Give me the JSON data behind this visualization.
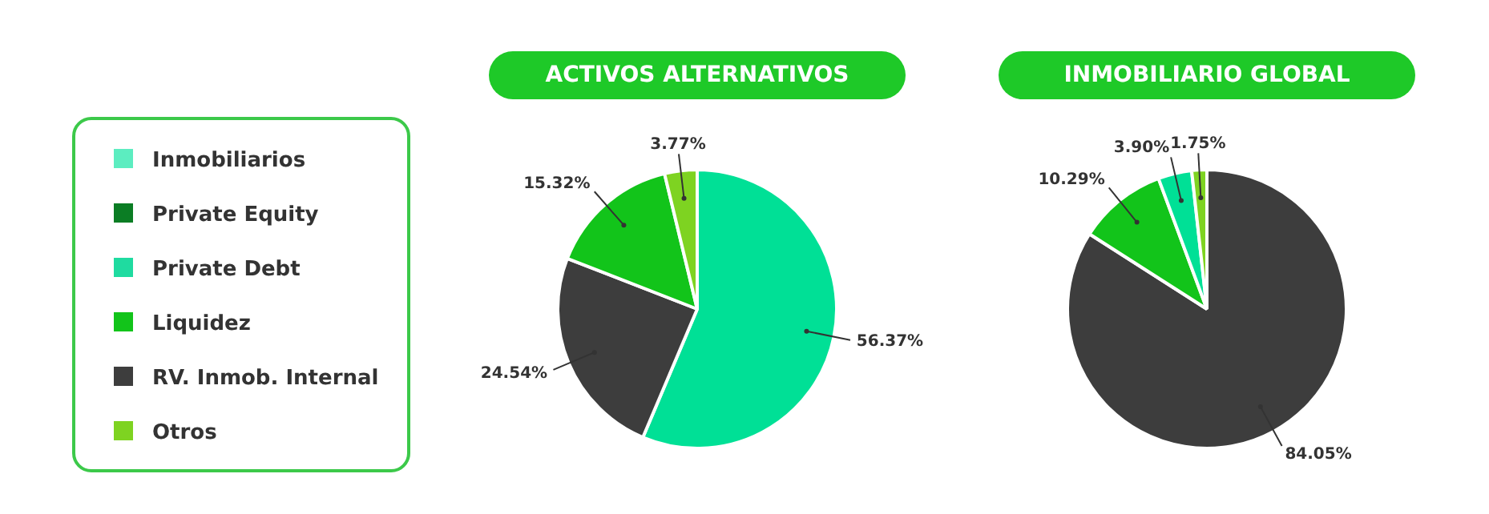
{
  "chart_data": [
    {
      "type": "other",
      "categories": [
        "Inmobiliarios",
        "Private Equity",
        "Private Debt",
        "Liquidez",
        "RV. Inmob. Internal",
        "Otros"
      ],
      "colors": [
        "#5cedc0",
        "#0b7d24",
        "#1fdba0",
        "#12c41a",
        "#3d3d3d",
        "#7ed321"
      ]
    },
    {
      "type": "pie",
      "title": "ACTIVOS ALTERNATIVOS",
      "categories": [
        null,
        null,
        null,
        null
      ],
      "values": [
        56.37,
        24.54,
        15.32,
        3.77
      ],
      "colors": [
        "#00e096",
        "#3d3d3d",
        "#12c41a",
        "#7ed321"
      ],
      "value_labels": [
        "56.37%",
        "24.54%",
        "15.32%",
        "3.77%"
      ]
    },
    {
      "type": "pie",
      "title": "INMOBILIARIO GLOBAL",
      "categories": [
        null,
        null,
        null,
        null
      ],
      "values": [
        84.05,
        10.29,
        3.9,
        1.75
      ],
      "colors": [
        "#3d3d3d",
        "#12c41a",
        "#00e096",
        "#7ed321"
      ],
      "value_labels": [
        "84.05%",
        "10.29%",
        "3.90%",
        "1.75%"
      ]
    }
  ]
}
